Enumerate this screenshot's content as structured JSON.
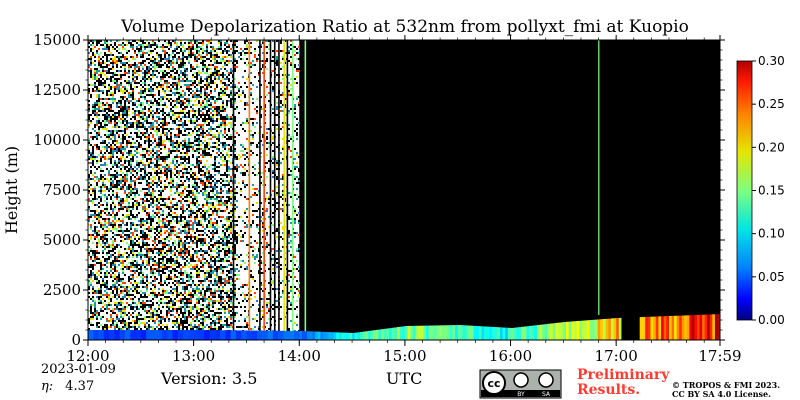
{
  "chart_data": {
    "type": "heatmap",
    "title": "Volume Depolarization Ratio at 532nm from pollyxt_fmi at Kuopio",
    "xlabel": "",
    "ylabel": "Height (m)",
    "x_ticks": [
      "12:00",
      "13:00",
      "14:00",
      "15:00",
      "16:00",
      "17:00",
      "17:59"
    ],
    "x_range_hours": [
      12.0,
      17.983
    ],
    "y_ticks": [
      0,
      2500,
      5000,
      7500,
      10000,
      12500,
      15000
    ],
    "ylim": [
      0,
      15000
    ],
    "colorbar": {
      "ticks": [
        "0.00",
        "0.05",
        "0.10",
        "0.15",
        "0.20",
        "0.25",
        "0.30"
      ],
      "range": [
        0.0,
        0.3
      ],
      "colormap": "jet"
    },
    "regions": [
      {
        "description": "noisy signal throughout column",
        "t_start": 12.0,
        "t_end": 13.4,
        "height_top": 15000
      },
      {
        "description": "sparse noise",
        "t_start": 13.4,
        "t_end": 14.0,
        "height_top": 15000
      },
      {
        "description": "no signal (black) above boundary layer",
        "t_start": 14.0,
        "t_end": 17.983,
        "height_top": 15000
      },
      {
        "description": "no data gap",
        "t_start": 17.05,
        "t_end": 17.22,
        "height_top": 1300
      }
    ],
    "boundary_layer": {
      "times": [
        12.0,
        13.0,
        14.0,
        14.5,
        15.0,
        15.5,
        16.0,
        16.5,
        17.0,
        17.5,
        17.983
      ],
      "top_heights": [
        500,
        500,
        450,
        350,
        700,
        750,
        600,
        900,
        1100,
        1200,
        1300
      ],
      "values": [
        0.06,
        0.05,
        0.07,
        0.12,
        0.15,
        0.13,
        0.12,
        0.16,
        0.2,
        0.24,
        0.26
      ]
    }
  },
  "header": {
    "title": "Volume Depolarization Ratio at 532nm from pollyxt_fmi at Kuopio"
  },
  "footer": {
    "date": "2023-01-09",
    "eta_symbol": "η:",
    "eta_value": "4.37",
    "version": "Version: 3.5",
    "utc_label": "UTC",
    "preliminary_line1": "Preliminary",
    "preliminary_line2": "Results.",
    "copyright_line1": "© TROPOS & FMI 2023.",
    "copyright_line2": "CC BY SA 4.0 License.",
    "cc_badge_text": "cc",
    "cc_by_label": "BY",
    "cc_sa_label": "SA"
  }
}
